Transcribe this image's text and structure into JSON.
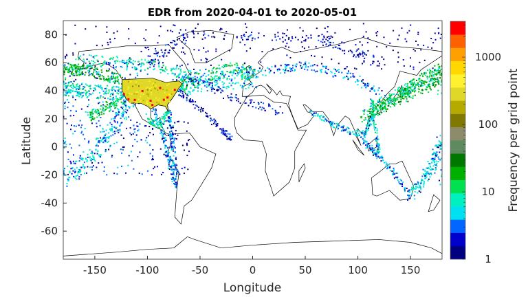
{
  "chart_data": {
    "type": "scatter",
    "title": "EDR from 2020-04-01 to 2020-05-01",
    "xlabel": "Longitude",
    "ylabel": "Latitude",
    "xlim": [
      -180,
      180
    ],
    "ylim": [
      -80,
      90
    ],
    "xticks": [
      -150,
      -100,
      -50,
      0,
      50,
      100,
      150
    ],
    "xtick_labels": [
      "-150",
      "-100",
      "-50",
      "0",
      "50",
      "100",
      "150"
    ],
    "yticks": [
      -60,
      -40,
      -20,
      0,
      20,
      40,
      60,
      80
    ],
    "ytick_labels": [
      "-60",
      "-40",
      "-20",
      "0",
      "20",
      "40",
      "60",
      "80"
    ],
    "grid": false,
    "background": "world map coastlines",
    "colorbar": {
      "label": "Frequency per grid point",
      "scale": "log",
      "range": [
        1,
        3400
      ],
      "ticks": [
        1,
        10,
        100,
        1000
      ],
      "tick_labels": [
        "1",
        "10",
        "100",
        "1000"
      ],
      "colors": [
        "#000080",
        "#0000cc",
        "#0066ff",
        "#00e0f0",
        "#00f0c0",
        "#00e050",
        "#00b000",
        "#007800",
        "#5f8a5f",
        "#8c8c6a",
        "#807800",
        "#b4aa00",
        "#e0d828",
        "#fff030",
        "#ffd800",
        "#ffa000",
        "#ff6000",
        "#ff0000"
      ]
    },
    "dense_regions": [
      {
        "name": "contiguous-us",
        "frequency": 250,
        "hotspot_frequency": 3000,
        "polygon": [
          [
            -124,
            48
          ],
          [
            -95,
            49
          ],
          [
            -83,
            46
          ],
          [
            -70,
            47
          ],
          [
            -67,
            45
          ],
          [
            -70,
            42
          ],
          [
            -76,
            35
          ],
          [
            -81,
            30
          ],
          [
            -80,
            25
          ],
          [
            -83,
            29
          ],
          [
            -90,
            30
          ],
          [
            -97,
            27
          ],
          [
            -100,
            29
          ],
          [
            -106,
            31
          ],
          [
            -111,
            31
          ],
          [
            -117,
            32
          ],
          [
            -120,
            34
          ],
          [
            -124,
            40
          ]
        ],
        "hotspots": [
          [
            -118,
            34
          ],
          [
            -112,
            33.5
          ],
          [
            -104.7,
            39.8
          ],
          [
            -97,
            32.9
          ],
          [
            -87.9,
            42
          ],
          [
            -84.4,
            33.6
          ],
          [
            -80.9,
            35.2
          ],
          [
            -74,
            40.7
          ],
          [
            -95.3,
            29.9
          ],
          [
            -122.3,
            37.6
          ]
        ]
      }
    ],
    "tracks": [
      {
        "frequency": 6,
        "spread": 5,
        "count": 220,
        "path": [
          [
            -75,
            40
          ],
          [
            -50,
            50
          ],
          [
            -20,
            55
          ],
          [
            0,
            52
          ]
        ]
      },
      {
        "frequency": 3,
        "spread": 6,
        "count": 160,
        "path": [
          [
            -72,
            42
          ],
          [
            -45,
            46
          ],
          [
            -15,
            47
          ],
          [
            2,
            48
          ]
        ]
      },
      {
        "frequency": 10,
        "spread": 4,
        "count": 200,
        "path": [
          [
            -125,
            48
          ],
          [
            -160,
            55
          ],
          [
            -180,
            55
          ]
        ]
      },
      {
        "frequency": 10,
        "spread": 4,
        "count": 140,
        "path": [
          [
            180,
            55
          ],
          [
            160,
            48
          ],
          [
            140,
            38
          ]
        ]
      },
      {
        "frequency": 8,
        "spread": 3,
        "count": 120,
        "path": [
          [
            -120,
            35
          ],
          [
            -140,
            28
          ],
          [
            -157,
            21
          ]
        ]
      },
      {
        "frequency": 4,
        "spread": 5,
        "count": 200,
        "path": [
          [
            -122,
            38
          ],
          [
            -160,
            40
          ],
          [
            -180,
            42
          ]
        ]
      },
      {
        "frequency": 3,
        "spread": 6,
        "count": 220,
        "path": [
          [
            -118,
            33
          ],
          [
            -150,
            -5
          ],
          [
            -180,
            -25
          ]
        ]
      },
      {
        "frequency": 2,
        "spread": 2,
        "count": 120,
        "path": [
          [
            -80,
            26
          ],
          [
            -76,
            5
          ],
          [
            -72,
            -30
          ]
        ]
      },
      {
        "frequency": 2,
        "spread": 2,
        "count": 110,
        "path": [
          [
            -95,
            29
          ],
          [
            -82,
            0
          ],
          [
            -75,
            -25
          ]
        ]
      },
      {
        "frequency": 1,
        "spread": 3,
        "count": 160,
        "path": [
          [
            -100,
            60
          ],
          [
            -60,
            80
          ],
          [
            60,
            78
          ],
          [
            120,
            60
          ]
        ]
      },
      {
        "frequency": 4,
        "spread": 4,
        "count": 180,
        "path": [
          [
            -165,
            62
          ],
          [
            -120,
            60
          ],
          [
            -80,
            56
          ],
          [
            -60,
            50
          ]
        ]
      },
      {
        "frequency": 12,
        "spread": 4,
        "count": 200,
        "path": [
          [
            112,
            25
          ],
          [
            140,
            35
          ],
          [
            180,
            48
          ]
        ]
      },
      {
        "frequency": 6,
        "spread": 4,
        "count": 150,
        "path": [
          [
            105,
            20
          ],
          [
            125,
            32
          ],
          [
            150,
            42
          ],
          [
            180,
            52
          ]
        ]
      },
      {
        "frequency": 2,
        "spread": 3,
        "count": 160,
        "path": [
          [
            0,
            52
          ],
          [
            50,
            58
          ],
          [
            95,
            50
          ],
          [
            120,
            38
          ]
        ]
      },
      {
        "frequency": 3,
        "spread": 2,
        "count": 140,
        "path": [
          [
            55,
            25
          ],
          [
            80,
            15
          ],
          [
            105,
            8
          ],
          [
            115,
            22
          ]
        ]
      },
      {
        "frequency": 3,
        "spread": 4,
        "count": 180,
        "path": [
          [
            150,
            -35
          ],
          [
            170,
            -15
          ],
          [
            180,
            5
          ]
        ]
      },
      {
        "frequency": 2,
        "spread": 2,
        "count": 120,
        "path": [
          [
            150,
            -34
          ],
          [
            125,
            -10
          ],
          [
            104,
            5
          ]
        ]
      },
      {
        "frequency": 1,
        "spread": 2,
        "count": 100,
        "path": [
          [
            -70,
            40
          ],
          [
            -40,
            20
          ],
          [
            -20,
            5
          ]
        ]
      },
      {
        "frequency": 1,
        "spread": 3,
        "count": 90,
        "path": [
          [
            -60,
            50
          ],
          [
            -20,
            35
          ],
          [
            30,
            25
          ]
        ]
      },
      {
        "frequency": 4,
        "spread": 1.5,
        "count": 80,
        "path": [
          [
            120,
            -5
          ],
          [
            116,
            20
          ],
          [
            113,
            35
          ]
        ]
      },
      {
        "frequency": 5,
        "spread": 2,
        "count": 80,
        "path": [
          [
            -80,
            25
          ],
          [
            -90,
            15
          ],
          [
            -99,
            19
          ]
        ]
      }
    ],
    "scatter_regions": [
      {
        "frequency": 1,
        "count": 260,
        "lon": [
          -180,
          180
        ],
        "lat": [
          55,
          88
        ]
      },
      {
        "frequency": 2,
        "count": 260,
        "lon": [
          -180,
          -95
        ],
        "lat": [
          -20,
          60
        ]
      },
      {
        "frequency": 1,
        "count": 60,
        "lon": [
          -100,
          -60
        ],
        "lat": [
          -20,
          20
        ]
      }
    ]
  }
}
